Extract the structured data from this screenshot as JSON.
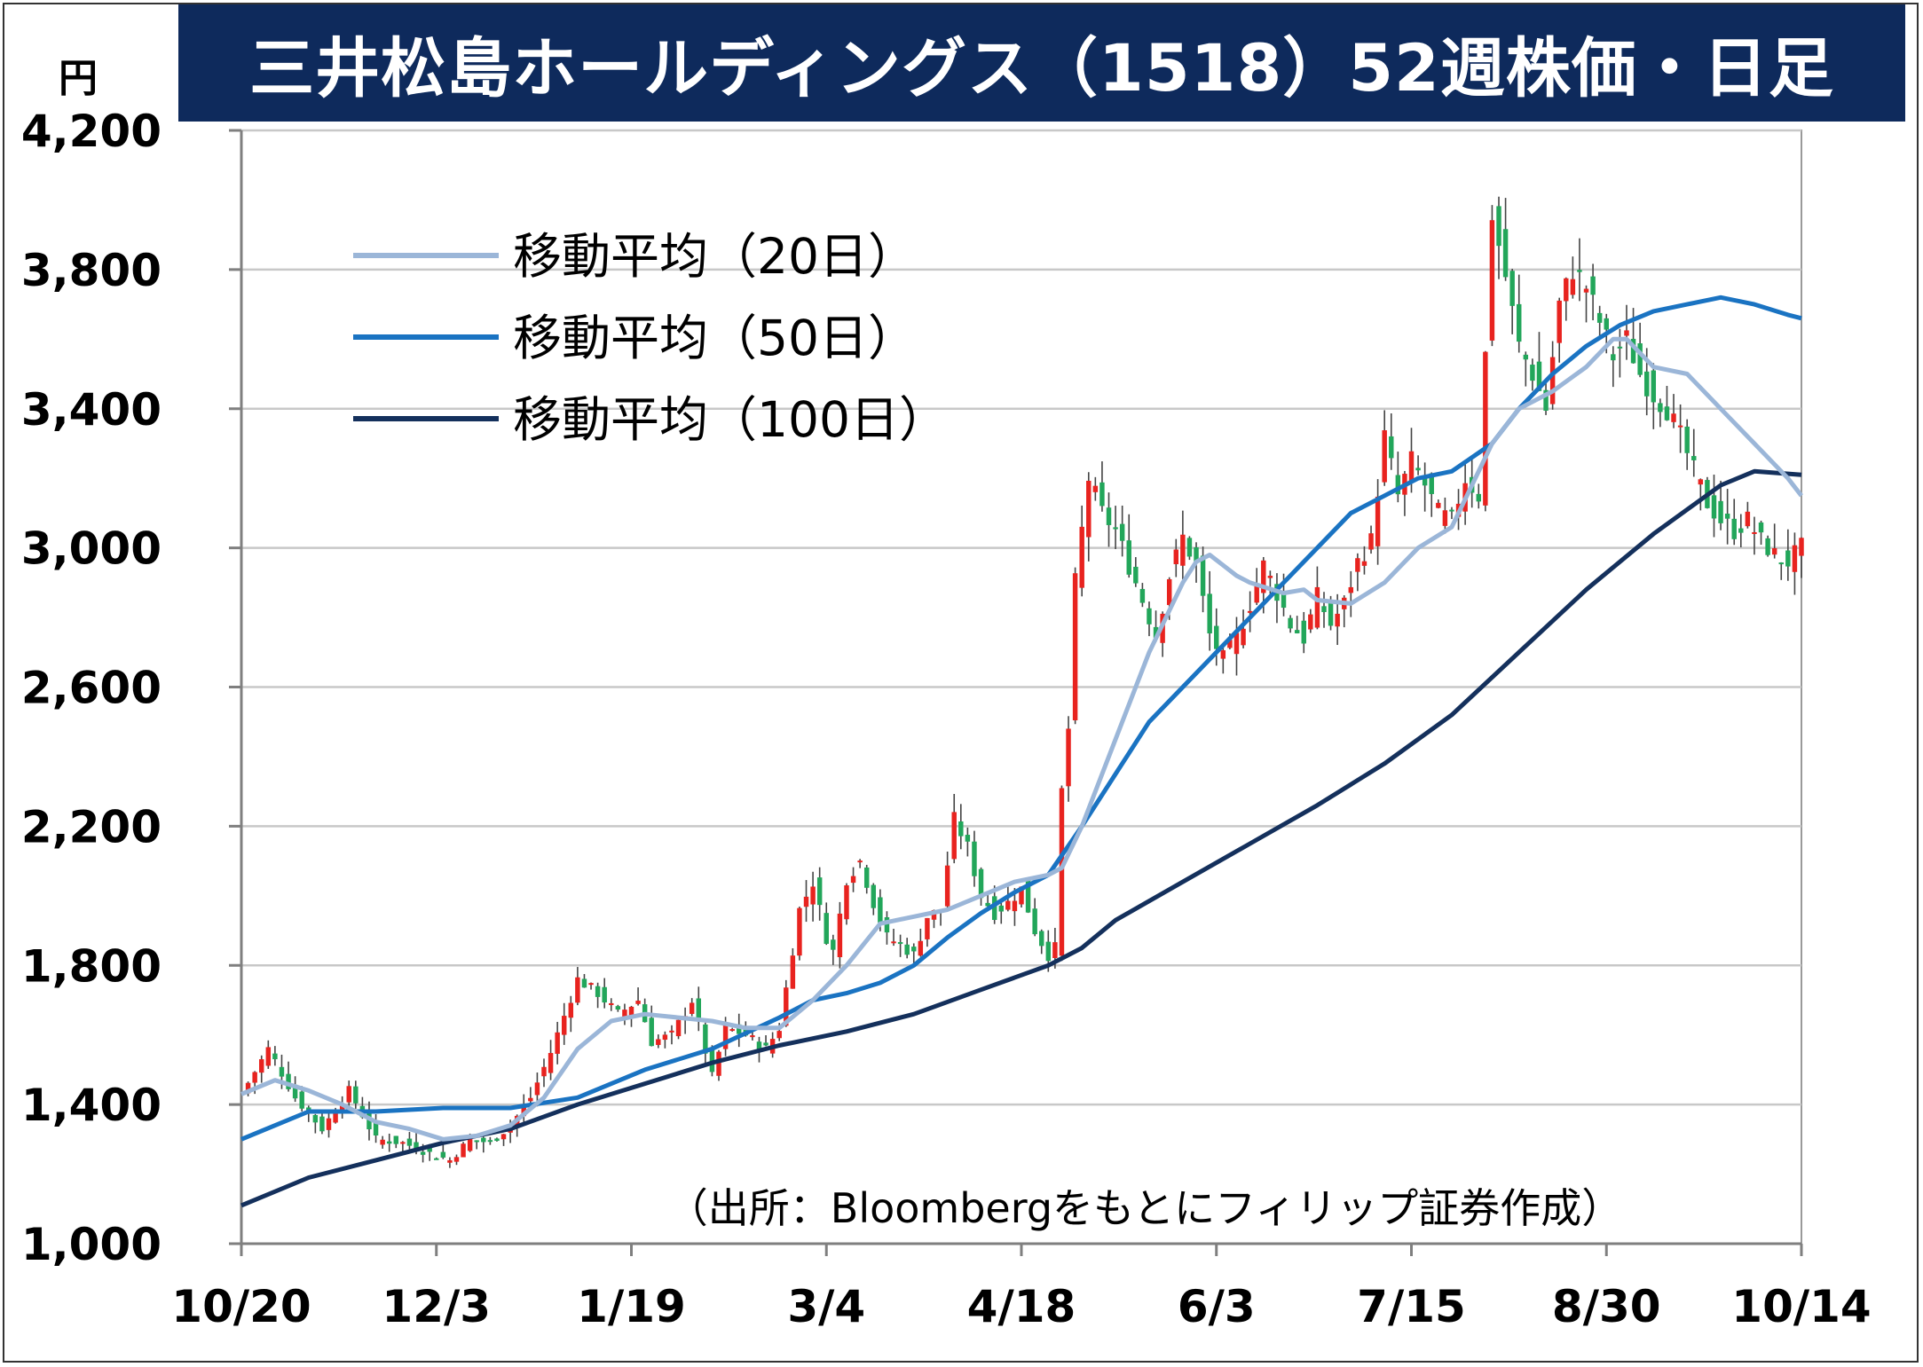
{
  "title": "三井松島ホールディングス（1518）52週株価・日足",
  "unit_label": "円",
  "source_note": "（出所：Bloombergをもとにフィリップ証券作成）",
  "colors": {
    "title_bg": "#0e2a5c",
    "up_candle": "#e8231f",
    "down_candle": "#22a65a",
    "wick": "#444444",
    "ma20": "#9bb6d8",
    "ma50": "#1a73c2",
    "ma100": "#14305c",
    "grid": "#c8c8c8"
  },
  "chart_data": {
    "type": "candlestick",
    "title": "三井松島ホールディングス（1518）52週株価・日足",
    "ylabel": "円",
    "ylim": [
      1000,
      4200
    ],
    "y_ticks": [
      1000,
      1400,
      1800,
      2200,
      2600,
      3000,
      3400,
      3800,
      4200
    ],
    "y_tick_labels": [
      "1,000",
      "1,400",
      "1,800",
      "2,200",
      "2,600",
      "3,000",
      "3,400",
      "3,800",
      "4,200"
    ],
    "x_tick_labels": [
      "10/20",
      "12/3",
      "1/19",
      "3/4",
      "4/18",
      "6/3",
      "7/15",
      "8/30",
      "10/14"
    ],
    "grid": true,
    "legend_position": "top-left",
    "series": [
      {
        "name": "移動平均（20日）",
        "key": "ma20"
      },
      {
        "name": "移動平均（50日）",
        "key": "ma50"
      },
      {
        "name": "移動平均（100日）",
        "key": "ma100"
      }
    ],
    "close_path": [
      [
        0,
        1430
      ],
      [
        4,
        1560
      ],
      [
        8,
        1420
      ],
      [
        12,
        1330
      ],
      [
        16,
        1440
      ],
      [
        20,
        1300
      ],
      [
        24,
        1290
      ],
      [
        28,
        1260
      ],
      [
        31,
        1240
      ],
      [
        34,
        1300
      ],
      [
        37,
        1290
      ],
      [
        40,
        1340
      ],
      [
        43,
        1420
      ],
      [
        46,
        1550
      ],
      [
        50,
        1760
      ],
      [
        53,
        1720
      ],
      [
        56,
        1660
      ],
      [
        59,
        1700
      ],
      [
        61,
        1580
      ],
      [
        64,
        1600
      ],
      [
        67,
        1700
      ],
      [
        70,
        1480
      ],
      [
        72,
        1620
      ],
      [
        75,
        1600
      ],
      [
        78,
        1560
      ],
      [
        80,
        1620
      ],
      [
        83,
        1960
      ],
      [
        85,
        2040
      ],
      [
        87,
        1880
      ],
      [
        88,
        1840
      ],
      [
        90,
        2050
      ],
      [
        92,
        2100
      ],
      [
        94,
        1980
      ],
      [
        96,
        1880
      ],
      [
        98,
        1860
      ],
      [
        100,
        1830
      ],
      [
        102,
        1940
      ],
      [
        104,
        1960
      ],
      [
        106,
        2220
      ],
      [
        108,
        2140
      ],
      [
        110,
        2000
      ],
      [
        112,
        1950
      ],
      [
        114,
        1980
      ],
      [
        116,
        2020
      ],
      [
        118,
        1900
      ],
      [
        120,
        1830
      ],
      [
        121,
        1850
      ],
      [
        122,
        2300
      ],
      [
        123,
        2480
      ],
      [
        124,
        2900
      ],
      [
        126,
        3200
      ],
      [
        128,
        3100
      ],
      [
        130,
        3050
      ],
      [
        132,
        2950
      ],
      [
        134,
        2850
      ],
      [
        136,
        2750
      ],
      [
        138,
        2920
      ],
      [
        140,
        3030
      ],
      [
        142,
        2950
      ],
      [
        144,
        2750
      ],
      [
        146,
        2680
      ],
      [
        148,
        2740
      ],
      [
        150,
        2840
      ],
      [
        152,
        2950
      ],
      [
        154,
        2870
      ],
      [
        156,
        2780
      ],
      [
        158,
        2740
      ],
      [
        160,
        2860
      ],
      [
        162,
        2780
      ],
      [
        164,
        2840
      ],
      [
        166,
        2960
      ],
      [
        168,
        3020
      ],
      [
        170,
        3320
      ],
      [
        172,
        3150
      ],
      [
        174,
        3250
      ],
      [
        176,
        3180
      ],
      [
        178,
        3100
      ],
      [
        180,
        3080
      ],
      [
        182,
        3200
      ],
      [
        184,
        3150
      ],
      [
        186,
        3960
      ],
      [
        188,
        3780
      ],
      [
        190,
        3580
      ],
      [
        192,
        3500
      ],
      [
        194,
        3400
      ],
      [
        196,
        3700
      ],
      [
        198,
        3800
      ],
      [
        200,
        3750
      ],
      [
        202,
        3650
      ],
      [
        204,
        3550
      ],
      [
        206,
        3600
      ],
      [
        208,
        3500
      ],
      [
        210,
        3440
      ],
      [
        212,
        3400
      ],
      [
        214,
        3320
      ],
      [
        216,
        3220
      ],
      [
        218,
        3130
      ],
      [
        220,
        3080
      ],
      [
        222,
        3050
      ],
      [
        224,
        3080
      ],
      [
        226,
        3020
      ],
      [
        228,
        2980
      ],
      [
        230,
        2960
      ],
      [
        232,
        3000
      ]
    ],
    "moving_averages": {
      "ma20": [
        [
          0,
          1430
        ],
        [
          5,
          1470
        ],
        [
          10,
          1440
        ],
        [
          15,
          1400
        ],
        [
          20,
          1350
        ],
        [
          25,
          1330
        ],
        [
          30,
          1300
        ],
        [
          35,
          1310
        ],
        [
          40,
          1340
        ],
        [
          45,
          1420
        ],
        [
          50,
          1560
        ],
        [
          55,
          1640
        ],
        [
          60,
          1660
        ],
        [
          65,
          1650
        ],
        [
          70,
          1640
        ],
        [
          75,
          1620
        ],
        [
          80,
          1620
        ],
        [
          85,
          1700
        ],
        [
          90,
          1800
        ],
        [
          95,
          1920
        ],
        [
          100,
          1940
        ],
        [
          105,
          1960
        ],
        [
          110,
          2000
        ],
        [
          115,
          2040
        ],
        [
          120,
          2060
        ],
        [
          122,
          2080
        ],
        [
          125,
          2200
        ],
        [
          130,
          2450
        ],
        [
          135,
          2700
        ],
        [
          140,
          2900
        ],
        [
          142,
          2960
        ],
        [
          144,
          2980
        ],
        [
          146,
          2950
        ],
        [
          148,
          2920
        ],
        [
          150,
          2900
        ],
        [
          155,
          2870
        ],
        [
          158,
          2880
        ],
        [
          160,
          2850
        ],
        [
          165,
          2840
        ],
        [
          170,
          2900
        ],
        [
          175,
          3000
        ],
        [
          180,
          3060
        ],
        [
          183,
          3180
        ],
        [
          186,
          3300
        ],
        [
          190,
          3400
        ],
        [
          195,
          3450
        ],
        [
          200,
          3520
        ],
        [
          204,
          3600
        ],
        [
          206,
          3600
        ],
        [
          210,
          3520
        ],
        [
          215,
          3500
        ],
        [
          220,
          3400
        ],
        [
          225,
          3300
        ],
        [
          230,
          3200
        ],
        [
          232,
          3150
        ]
      ],
      "ma50": [
        [
          0,
          1300
        ],
        [
          10,
          1380
        ],
        [
          20,
          1380
        ],
        [
          30,
          1390
        ],
        [
          40,
          1390
        ],
        [
          50,
          1420
        ],
        [
          60,
          1500
        ],
        [
          70,
          1560
        ],
        [
          80,
          1650
        ],
        [
          85,
          1700
        ],
        [
          90,
          1720
        ],
        [
          95,
          1750
        ],
        [
          100,
          1800
        ],
        [
          105,
          1880
        ],
        [
          110,
          1950
        ],
        [
          115,
          2010
        ],
        [
          120,
          2060
        ],
        [
          125,
          2200
        ],
        [
          130,
          2350
        ],
        [
          135,
          2500
        ],
        [
          140,
          2600
        ],
        [
          145,
          2700
        ],
        [
          150,
          2800
        ],
        [
          155,
          2900
        ],
        [
          160,
          3000
        ],
        [
          165,
          3100
        ],
        [
          170,
          3150
        ],
        [
          175,
          3200
        ],
        [
          180,
          3220
        ],
        [
          183,
          3260
        ],
        [
          186,
          3300
        ],
        [
          190,
          3400
        ],
        [
          195,
          3500
        ],
        [
          200,
          3580
        ],
        [
          205,
          3640
        ],
        [
          210,
          3680
        ],
        [
          215,
          3700
        ],
        [
          220,
          3720
        ],
        [
          225,
          3700
        ],
        [
          230,
          3670
        ],
        [
          232,
          3660
        ]
      ],
      "ma100": [
        [
          0,
          1110
        ],
        [
          10,
          1190
        ],
        [
          20,
          1240
        ],
        [
          30,
          1290
        ],
        [
          40,
          1330
        ],
        [
          50,
          1400
        ],
        [
          60,
          1460
        ],
        [
          70,
          1520
        ],
        [
          80,
          1570
        ],
        [
          90,
          1610
        ],
        [
          100,
          1660
        ],
        [
          110,
          1730
        ],
        [
          120,
          1800
        ],
        [
          125,
          1850
        ],
        [
          130,
          1930
        ],
        [
          140,
          2040
        ],
        [
          150,
          2150
        ],
        [
          160,
          2260
        ],
        [
          170,
          2380
        ],
        [
          180,
          2520
        ],
        [
          190,
          2700
        ],
        [
          200,
          2880
        ],
        [
          210,
          3040
        ],
        [
          220,
          3180
        ],
        [
          225,
          3220
        ],
        [
          232,
          3210
        ]
      ]
    }
  }
}
